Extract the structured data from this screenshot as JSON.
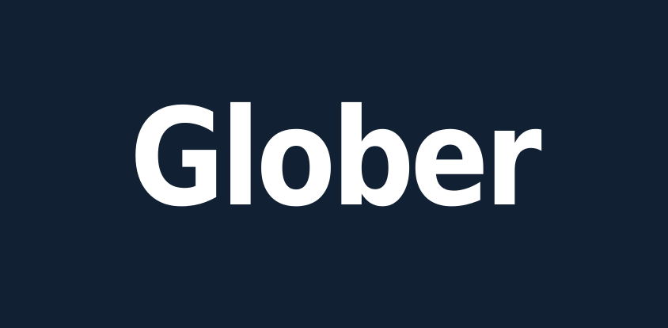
{
  "logo": {
    "text": "Glober"
  },
  "colors": {
    "background": "#112133",
    "text": "#ffffff"
  }
}
